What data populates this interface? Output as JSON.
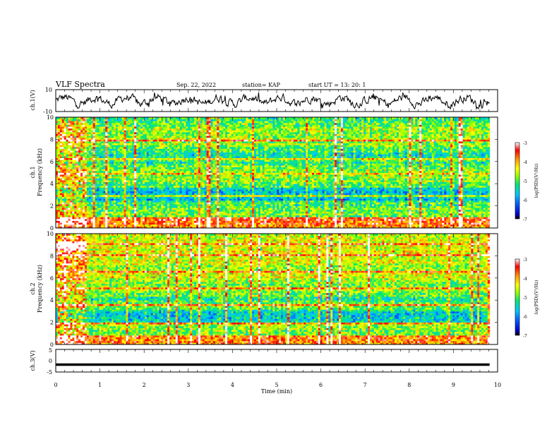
{
  "header": {
    "title": "VLF Spectra",
    "date": "Sep. 22, 2022",
    "station": "station= KAP",
    "start": "start  UT =   13: 20: 1"
  },
  "chart_data": [
    {
      "type": "line",
      "name": "ch1-waveform",
      "ylabel": "ch.1(V)",
      "ylim": [
        -10,
        10
      ],
      "yticks": [
        "10",
        "-10"
      ],
      "xlim": [
        0,
        10
      ],
      "data_end_min": 9.82
    },
    {
      "type": "heatmap",
      "name": "ch1-spectrogram",
      "ylabel_line1": "ch.1",
      "ylabel_line2": "Frequency (kHz)",
      "ylim": [
        0,
        10
      ],
      "yticks": [
        "0",
        "2",
        "4",
        "6",
        "8",
        "10"
      ],
      "xlim": [
        0,
        10
      ],
      "data_end_min": 9.82,
      "colorbar": {
        "label": "log(PSD)(V²/Hz)",
        "range": [
          -7,
          -3
        ],
        "ticks": [
          "-3",
          "-4",
          "-5",
          "-6",
          "-7"
        ]
      }
    },
    {
      "type": "heatmap",
      "name": "ch2-spectrogram",
      "ylabel_line1": "ch.2",
      "ylabel_line2": "Frequency (kHz)",
      "ylim": [
        0,
        10
      ],
      "yticks": [
        "0",
        "2",
        "4",
        "6",
        "8",
        "10"
      ],
      "xlim": [
        0,
        10
      ],
      "data_end_min": 9.82,
      "colorbar": {
        "label": "log(PSD)(V²/Hz)",
        "range": [
          -7,
          -3
        ],
        "ticks": [
          "-3",
          "-4",
          "-5",
          "-6",
          "-7"
        ]
      }
    },
    {
      "type": "line",
      "name": "ch3-waveform",
      "ylabel": "ch.3(V)",
      "ylim": [
        -5,
        5
      ],
      "yticks": [
        "5",
        "0",
        "-5"
      ],
      "xlim": [
        0,
        10
      ],
      "data_end_min": 9.82
    }
  ],
  "xaxis": {
    "label": "Time (min)",
    "ticks": [
      "0",
      "1",
      "2",
      "3",
      "4",
      "5",
      "6",
      "7",
      "8",
      "9",
      "10"
    ]
  },
  "colors": {
    "axis": "#000000",
    "colormap": [
      "#000000",
      "#0000c8",
      "#0050ff",
      "#00c8ff",
      "#00e678",
      "#96ff00",
      "#ffff00",
      "#ff9600",
      "#ff0000",
      "#ffffff"
    ]
  }
}
